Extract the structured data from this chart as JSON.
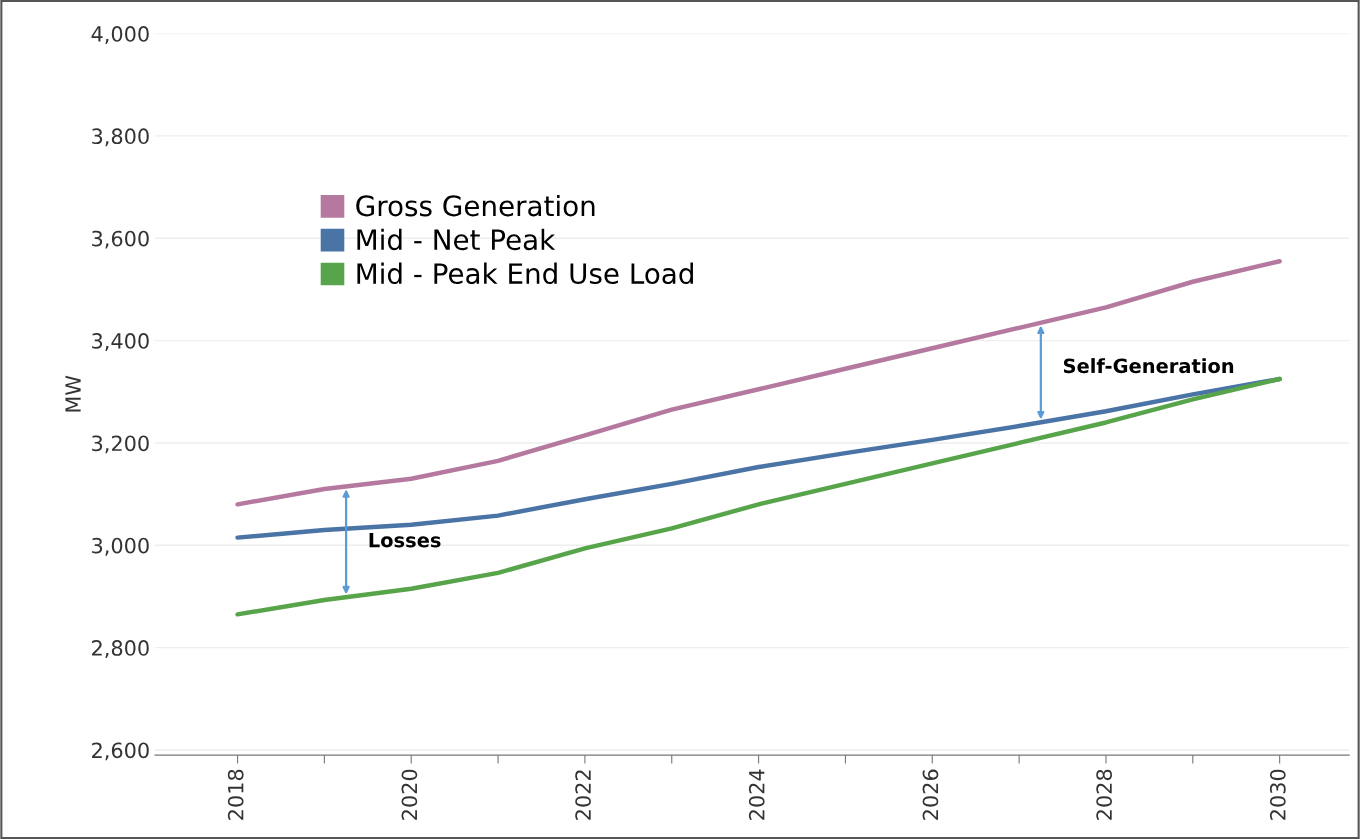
{
  "chart_data": {
    "type": "line",
    "ylabel": "MW",
    "x": [
      2018,
      2019,
      2020,
      2021,
      2022,
      2023,
      2024,
      2025,
      2026,
      2027,
      2028,
      2029,
      2030
    ],
    "series": [
      {
        "name": "Gross Generation",
        "color": "#b5799f",
        "values": [
          3080,
          3110,
          3130,
          3165,
          3215,
          3265,
          3305,
          3345,
          3385,
          3425,
          3465,
          3515,
          3555
        ]
      },
      {
        "name": "Mid - Net Peak",
        "color": "#4a74a6",
        "values": [
          3015,
          3030,
          3040,
          3058,
          3090,
          3120,
          3153,
          3180,
          3206,
          3233,
          3262,
          3295,
          3325
        ]
      },
      {
        "name": "Mid - Peak End Use Load",
        "color": "#58a44a",
        "values": [
          2865,
          2893,
          2915,
          2946,
          2994,
          3033,
          3080,
          3120,
          3160,
          3200,
          3240,
          3285,
          3325
        ]
      }
    ],
    "annotations": [
      "Losses",
      "Self-Generation"
    ],
    "xlim": [
      2017.05,
      2030.8
    ],
    "xticks": [
      2018,
      {
        "value": 2019,
        "label": null
      },
      2020,
      {
        "value": 2021,
        "label": null
      },
      2022,
      {
        "value": 2023,
        "label": null
      },
      2024,
      {
        "value": 2025,
        "label": null
      },
      2026,
      {
        "value": 2027,
        "label": null
      },
      2028,
      {
        "value": 2029,
        "label": null
      },
      2030
    ],
    "ylim": [
      2590,
      4000
    ],
    "yticks": [
      {
        "value": 2600,
        "label": "2,600"
      },
      {
        "value": 2800,
        "label": "2,800"
      },
      {
        "value": 3000,
        "label": "3,000"
      },
      {
        "value": 3200,
        "label": "3,200"
      },
      {
        "value": 3400,
        "label": "3,400"
      },
      {
        "value": 3600,
        "label": "3,600"
      },
      {
        "value": 3800,
        "label": "3,800"
      },
      {
        "value": 4000,
        "label": "4,000"
      }
    ],
    "grid": "y",
    "legend": "top left",
    "marker": "none",
    "line_style": "solid"
  }
}
